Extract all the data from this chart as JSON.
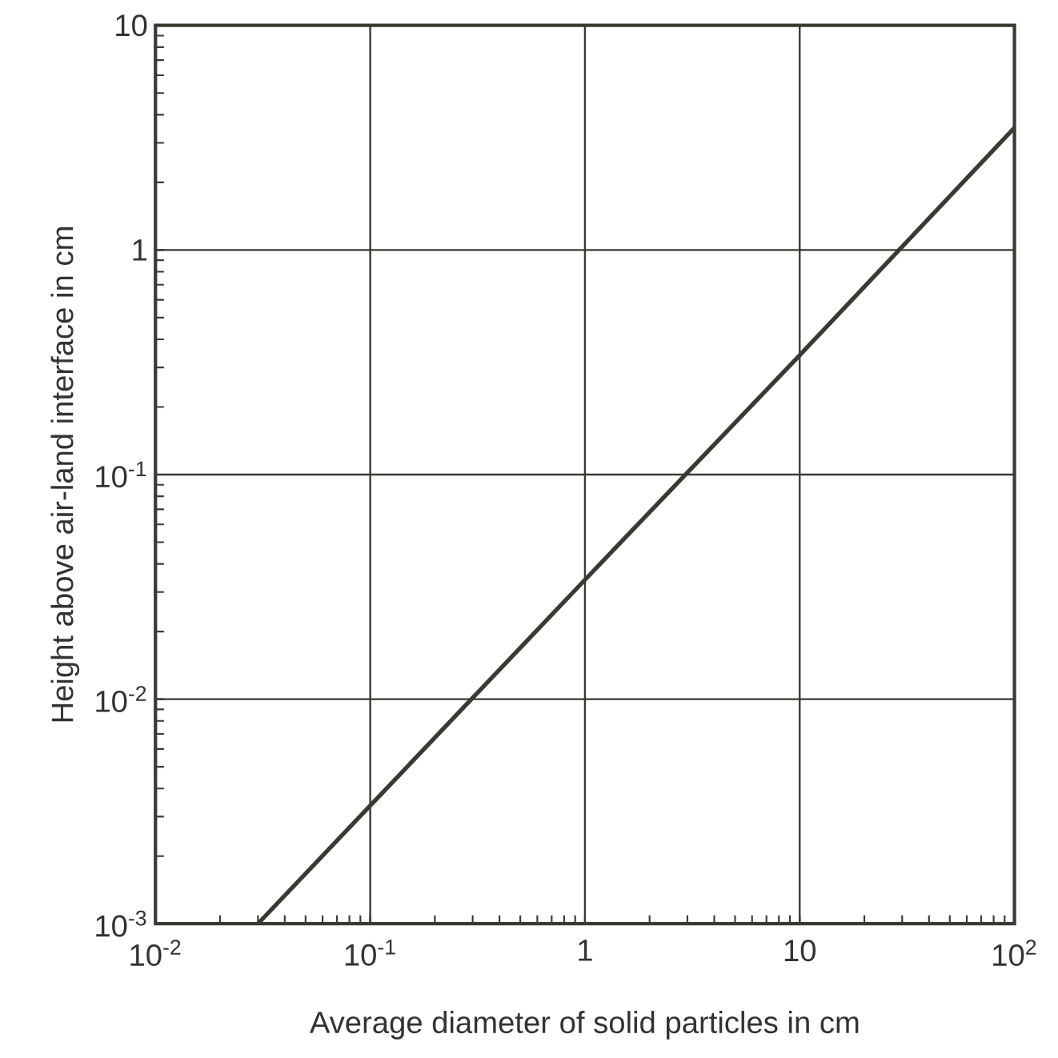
{
  "chart_data": {
    "type": "line",
    "xlabel": "Average diameter of solid particles in cm",
    "ylabel": "Height above air-land interface in cm",
    "x": [
      0.03,
      1,
      10,
      100
    ],
    "values": [
      0.001,
      0.034,
      0.34,
      3.5
    ],
    "color": "#3a3a32",
    "log": "xy",
    "grid": true,
    "marker": "none",
    "line_style": "solid",
    "xlim": [
      0.01,
      100
    ],
    "ylim": [
      0.001,
      10
    ],
    "xticks": [
      {
        "value": 0.01,
        "label": "10$^{-2}$"
      },
      {
        "value": 0.1,
        "label": "10$^{-1}$"
      },
      1,
      10,
      {
        "value": 100,
        "label": "10$^{2}$"
      }
    ],
    "yticks": [
      {
        "value": 0.001,
        "label": "10$^{-3}$"
      },
      {
        "value": 0.01,
        "label": "10$^{-2}$"
      },
      {
        "value": 0.1,
        "label": "10$^{-1}$"
      },
      1,
      10
    ]
  }
}
